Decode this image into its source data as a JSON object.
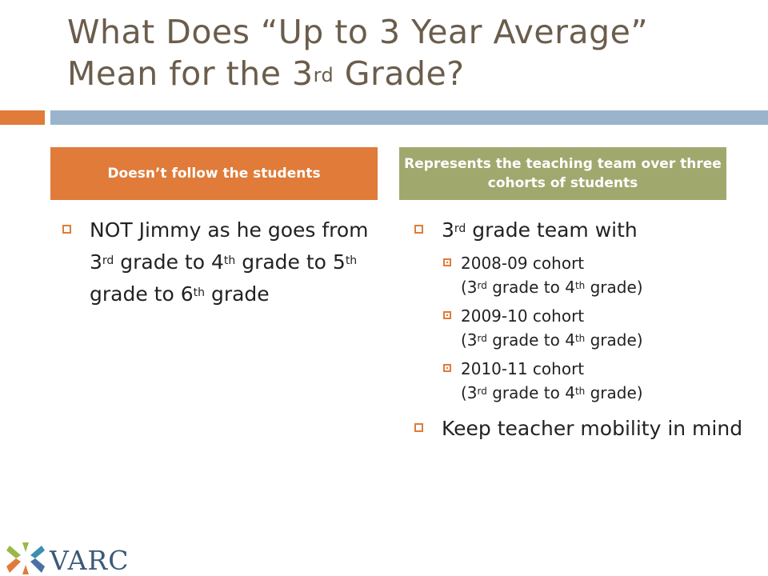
{
  "title": {
    "line1": "What Does “Up to 3 Year Average”",
    "line2_pre": "Mean for the 3",
    "line2_sup": "rd",
    "line2_post": " Grade?"
  },
  "left": {
    "header": "Doesn’t follow the students",
    "bullet": {
      "t1": "NOT Jimmy as he goes from 3",
      "s1": "rd",
      "t2": " grade to 4",
      "s2": "th",
      "t3": " grade to 5",
      "s3": "th",
      "t4": " grade to 6",
      "s4": "th",
      "t5": " grade"
    }
  },
  "right": {
    "header": "Represents the teaching team over three cohorts of students",
    "bullet1": {
      "t1": "3",
      "s1": "rd",
      "t2": " grade team with"
    },
    "cohorts": [
      {
        "name": "2008-09 cohort",
        "p1": "(3",
        "s1": "rd",
        "p2": " grade to 4",
        "s2": "th",
        "p3": " grade)"
      },
      {
        "name": "2009-10 cohort",
        "p1": "(3",
        "s1": "rd",
        "p2": " grade to 4",
        "s2": "th",
        "p3": " grade)"
      },
      {
        "name": "2010-11 cohort",
        "p1": "(3",
        "s1": "rd",
        "p2": " grade to 4",
        "s2": "th",
        "p3": " grade)"
      }
    ],
    "bullet2": "Keep teacher mobility in mind"
  },
  "logo": {
    "text": "VARC"
  },
  "colors": {
    "accent_orange": "#e07b39",
    "accent_blue": "#9ab4cc",
    "olive": "#a1a86e",
    "title_brown": "#6b5d4c"
  }
}
